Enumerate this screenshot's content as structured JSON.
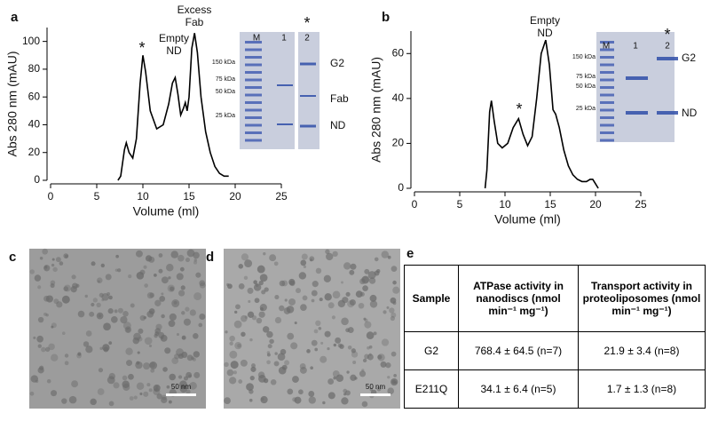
{
  "chart_data": [
    {
      "type": "line",
      "panel": "a",
      "xlabel": "Volume (ml)",
      "ylabel": "Abs 280 nm (mAU)",
      "x": [
        7.3,
        7.6,
        8.0,
        8.2,
        8.5,
        8.9,
        9.3,
        9.7,
        10.0,
        10.3,
        10.8,
        11.5,
        12.2,
        12.8,
        13.2,
        13.5,
        13.8,
        14.1,
        14.4,
        14.6,
        14.8,
        15.0,
        15.3,
        15.6,
        15.9,
        16.3,
        16.8,
        17.3,
        17.8,
        18.3,
        18.8,
        19.3
      ],
      "series": [
        {
          "color": "#000000",
          "values": [
            0,
            3,
            22,
            27,
            20,
            16,
            30,
            70,
            90,
            78,
            50,
            37,
            40,
            55,
            70,
            74,
            62,
            47,
            52,
            56,
            50,
            60,
            95,
            106,
            92,
            60,
            35,
            20,
            10,
            5,
            3,
            3
          ]
        }
      ],
      "xlim": [
        0,
        25
      ],
      "xticks": [
        0,
        5,
        10,
        15,
        20,
        25
      ],
      "ylim": [
        0,
        110
      ],
      "yticks": [
        0,
        20,
        40,
        60,
        80,
        100
      ],
      "annotations": [
        "*",
        "Empty",
        "ND",
        "Excess",
        "Fab"
      ]
    },
    {
      "type": "line",
      "panel": "b",
      "xlabel": "Volume (ml)",
      "ylabel": "Abs 280 nm (mAU)",
      "x": [
        7.8,
        8.0,
        8.3,
        8.5,
        8.8,
        9.2,
        9.7,
        10.3,
        10.9,
        11.5,
        12.0,
        12.5,
        13.0,
        13.5,
        14.0,
        14.5,
        14.9,
        15.3,
        15.6,
        16.0,
        16.5,
        17.0,
        17.5,
        18.0,
        18.5,
        19.0,
        19.4,
        19.7,
        20.0,
        20.3
      ],
      "series": [
        {
          "color": "#000000",
          "values": [
            0,
            8,
            34,
            39,
            30,
            20,
            18,
            20,
            27,
            31,
            24,
            19,
            23,
            40,
            60,
            66,
            55,
            35,
            33,
            27,
            17,
            10,
            6,
            4,
            3,
            3,
            4,
            4,
            2,
            0
          ]
        }
      ],
      "xlim": [
        0,
        25
      ],
      "xticks": [
        0,
        5,
        10,
        15,
        20,
        25
      ],
      "ylim": [
        0,
        70
      ],
      "yticks": [
        0,
        20,
        40,
        60
      ],
      "annotations": [
        "*",
        "Empty",
        "ND"
      ]
    }
  ],
  "gels": [
    {
      "lanes": [
        "M",
        "1",
        "2"
      ],
      "star": "*",
      "markers": [
        "150 kDa",
        "75 kDa",
        "50 kDa",
        "25 kDa"
      ],
      "bands": [
        "G2",
        "Fab",
        "ND"
      ]
    },
    {
      "lanes": [
        "M",
        "1",
        "2"
      ],
      "star": "*",
      "markers": [
        "150 kDa",
        "75 kDa",
        "50 kDa",
        "25 kDa"
      ],
      "bands": [
        "G2",
        "ND"
      ]
    }
  ],
  "micrographs": [
    {
      "panel": "c",
      "scale_bar": "50 nm"
    },
    {
      "panel": "d",
      "scale_bar": "50 nm"
    }
  ],
  "table": {
    "panel": "e",
    "header": [
      "Sample",
      "ATPase activity in nanodiscs (nmol min⁻¹ mg⁻¹)",
      "Transport activity in proteoliposomes (nmol min⁻¹ mg⁻¹)"
    ],
    "rows": [
      [
        "G2",
        "768.4 ± 64.5 (n=7)",
        "21.9 ± 3.4 (n=8)"
      ],
      [
        "E211Q",
        "34.1 ± 6.4 (n=5)",
        "1.7 ± 1.3 (n=8)"
      ]
    ]
  }
}
